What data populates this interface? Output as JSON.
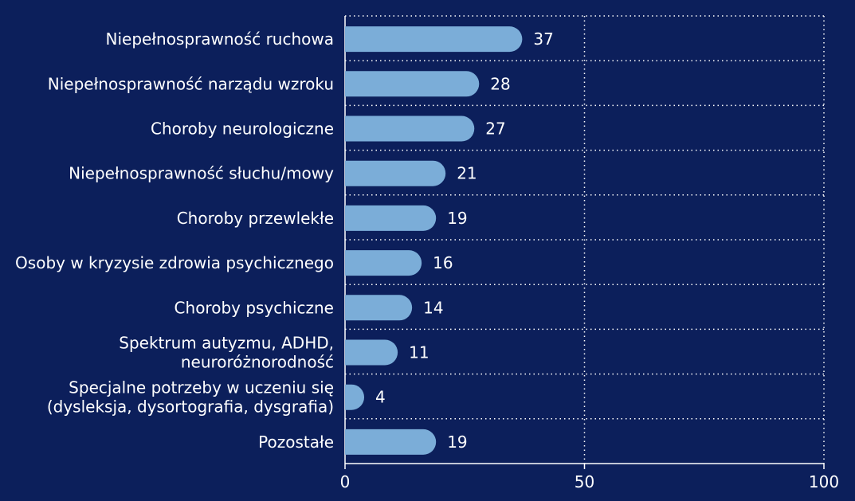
{
  "colors": {
    "background": "#0c1f5b",
    "bar": "#7badd8",
    "grid": "#ffffff",
    "text": "#ffffff"
  },
  "chart_data": {
    "type": "bar",
    "orientation": "horizontal",
    "categories": [
      [
        "Niepełnosprawność ruchowa"
      ],
      [
        "Niepełnosprawność narządu wzroku"
      ],
      [
        "Choroby neurologiczne"
      ],
      [
        "Niepełnosprawność słuchu/mowy"
      ],
      [
        "Choroby przewlekłe"
      ],
      [
        "Osoby w kryzysie zdrowia psychicznego"
      ],
      [
        "Choroby psychiczne"
      ],
      [
        "Spektrum autyzmu, ADHD,",
        "neuroróżnorodność"
      ],
      [
        "Specjalne potrzeby w uczeniu się",
        "(dysleksja, dysortografia, dysgrafia)"
      ],
      [
        "Pozostałe"
      ]
    ],
    "values": [
      37,
      28,
      27,
      21,
      19,
      16,
      14,
      11,
      4,
      19
    ],
    "xlim": [
      0,
      100
    ],
    "xticks": [
      0,
      50,
      100
    ],
    "grid": true,
    "legend": "none",
    "title": "",
    "xlabel": "",
    "ylabel": ""
  }
}
